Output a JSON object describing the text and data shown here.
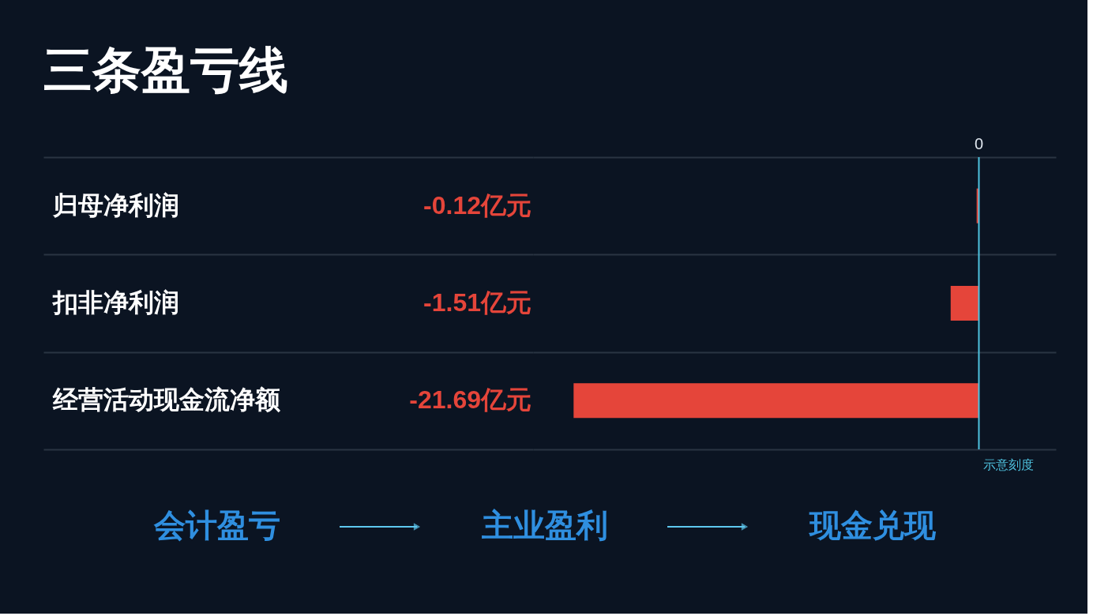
{
  "chart_data": {
    "type": "bar",
    "orientation": "horizontal",
    "title": "三条盈亏线",
    "categories": [
      "归母净利润",
      "扣非净利润",
      "经营活动现金流净额"
    ],
    "values": [
      -0.12,
      -1.51,
      -21.69
    ],
    "value_labels": [
      "-0.12亿元",
      "-1.51亿元",
      "-21.69亿元"
    ],
    "color": "#e5453a",
    "grid": "y",
    "ref_lines": [
      {
        "axis": "x",
        "value": 0,
        "color": "#4fc3e0"
      }
    ],
    "annotations": [
      "0",
      "示意刻度",
      "会计盈亏",
      "主业盈利",
      "现金兑现"
    ]
  }
}
